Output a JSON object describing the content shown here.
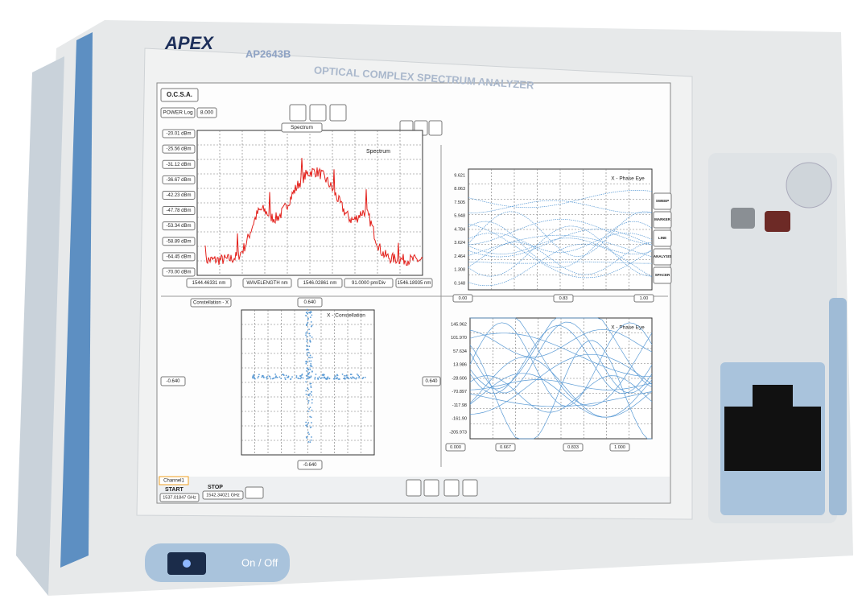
{
  "device": {
    "brand": "APEX",
    "model": "AP2643B",
    "name": "OPTICAL COMPLEX SPECTRUM ANALYZER",
    "power": "On / Off"
  },
  "screen": {
    "app": "O.C.S.A.",
    "spectrum": {
      "scale": "POWER Log",
      "scale_value": "8.000",
      "title": "Spectrum",
      "legend": "Spectrum",
      "y_labels": [
        "-20.01 dBm",
        "-25.56 dBm",
        "-31.12 dBm",
        "-36.67 dBm",
        "-42.23 dBm",
        "-47.78 dBm",
        "-53.34 dBm",
        "-58.89 dBm",
        "-64.45 dBm",
        "-70.00 dBm"
      ],
      "x_labels": [
        "1544.46331 nm",
        "WAVELENGTH nm",
        "1546.02861 nm",
        "91.0000 pm/Div",
        "1546.18935 nm"
      ]
    },
    "phase_eye_top": {
      "title": "X - Phase Eye",
      "y_labels": [
        "9.621",
        "8.063",
        "7.505",
        "5.948",
        "4.784",
        "3.624",
        "2.464",
        "1.308",
        "0.148"
      ],
      "x_labels": [
        "0.00",
        "0.83",
        "1.00"
      ]
    },
    "constellation": {
      "title": "Constellation - X",
      "legend": "X - Constellation",
      "top": "0.640",
      "bottom": "-0.640",
      "left": "-0.640",
      "right": "0.640"
    },
    "phase_eye_bottom": {
      "title": "X - Phase Eye",
      "y_labels": [
        "145.962",
        "101.970",
        "57.634",
        "13.986",
        "-28.606",
        "-70.897",
        "-117.98",
        "-161.90",
        "-205.973"
      ],
      "x_labels": [
        "0.000",
        "0.667",
        "0.833",
        "1.000"
      ]
    },
    "side_buttons": [
      "SWEEP",
      "MARKER",
      "LINE",
      "ANALYSIS",
      "SPACER"
    ],
    "channel": {
      "tab": "Channel1",
      "start_label": "START",
      "start": "1537.01847 GHz",
      "stop_label": "STOP",
      "stop": "1542.34021 GHz"
    }
  }
}
